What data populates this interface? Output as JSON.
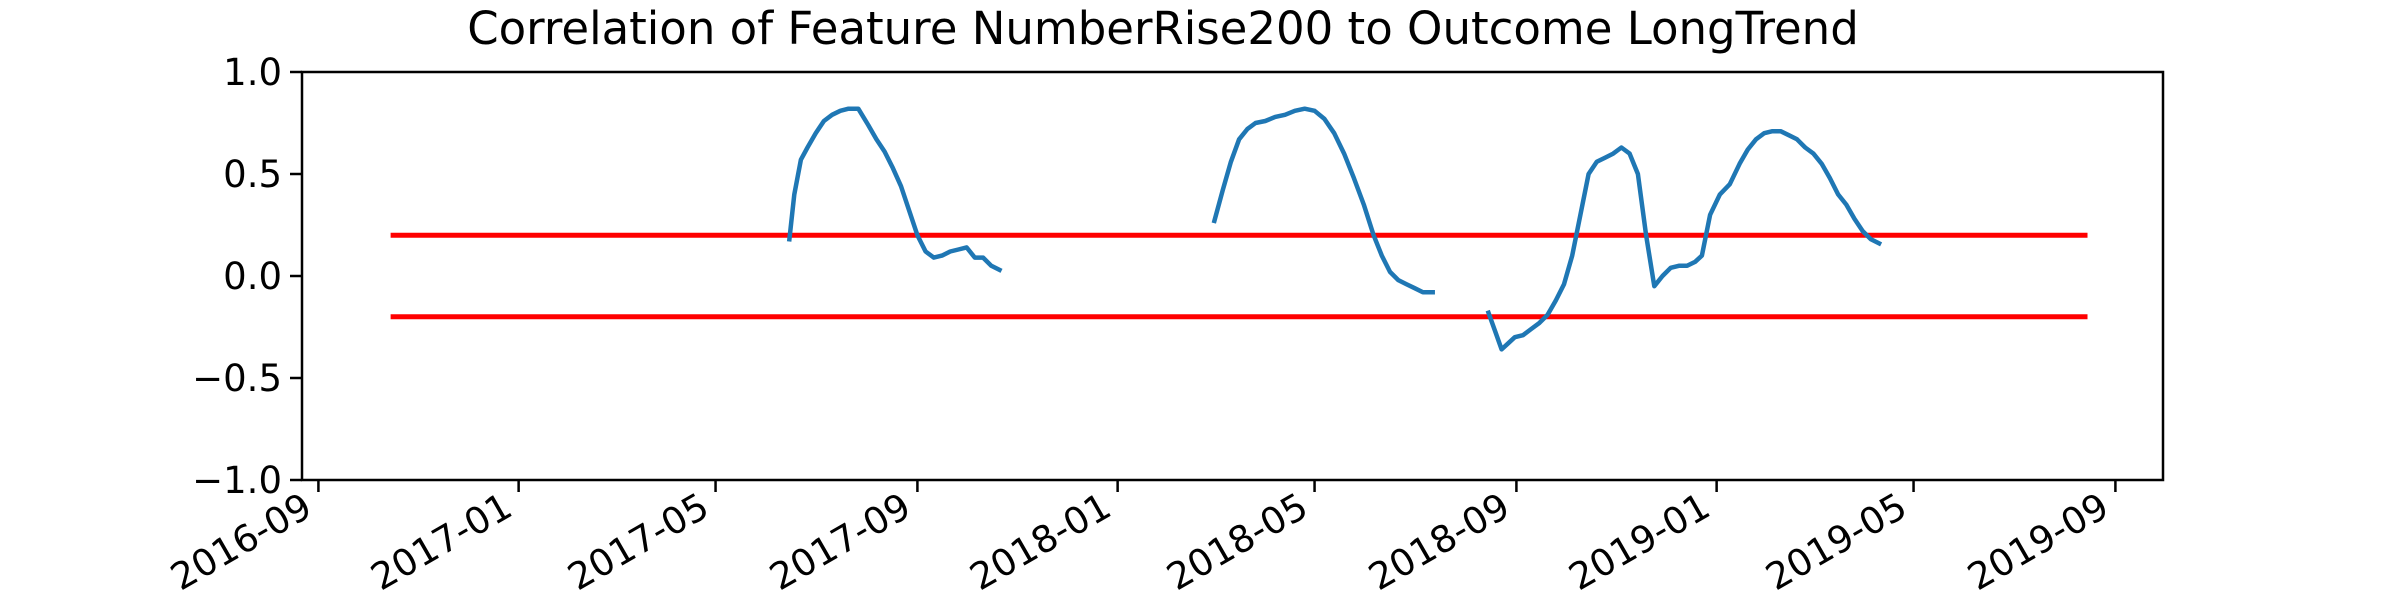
{
  "chart_data": {
    "type": "line",
    "title": "Correlation of Feature NumberRise200 to Outcome LongTrend",
    "xlabel": "",
    "ylabel": "",
    "xlim": [
      "2016-08-22",
      "2019-09-30"
    ],
    "ylim": [
      -1.0,
      1.0
    ],
    "grid": false,
    "legend": "none",
    "y_ticks": [
      "1.0",
      "0.5",
      "0.0",
      "−0.5",
      "−1.0"
    ],
    "y_tick_values": [
      1.0,
      0.5,
      0.0,
      -0.5,
      -1.0
    ],
    "x_ticks": [
      "2016-09",
      "2017-01",
      "2017-05",
      "2017-09",
      "2018-01",
      "2018-05",
      "2018-09",
      "2019-01",
      "2019-05",
      "2019-09"
    ],
    "x_tick_dates": [
      "2016-09-01",
      "2017-01-01",
      "2017-05-01",
      "2017-09-01",
      "2018-01-01",
      "2018-05-01",
      "2018-09-01",
      "2019-01-01",
      "2019-05-01",
      "2019-09-01"
    ],
    "colors": {
      "series": "#1f77b4",
      "threshold": "#ff0000"
    },
    "thresholds": [
      {
        "y": 0.2,
        "x": [
          "2016-10-15",
          "2019-08-15"
        ]
      },
      {
        "y": -0.2,
        "x": [
          "2016-10-15",
          "2019-08-15"
        ]
      }
    ],
    "series": [
      {
        "segments": [
          {
            "x": [
              "2017-06-15",
              "2017-06-18",
              "2017-06-22",
              "2017-06-26",
              "2017-07-01",
              "2017-07-06",
              "2017-07-11",
              "2017-07-16",
              "2017-07-21",
              "2017-07-27",
              "2017-08-02",
              "2017-08-07",
              "2017-08-12",
              "2017-08-17",
              "2017-08-22",
              "2017-08-27",
              "2017-09-01",
              "2017-09-06",
              "2017-09-11",
              "2017-09-16",
              "2017-09-21",
              "2017-09-26",
              "2017-10-01",
              "2017-10-06",
              "2017-10-11",
              "2017-10-16",
              "2017-10-21"
            ],
            "y": [
              0.18,
              0.4,
              0.57,
              0.63,
              0.7,
              0.76,
              0.79,
              0.81,
              0.82,
              0.82,
              0.74,
              0.67,
              0.61,
              0.53,
              0.44,
              0.32,
              0.2,
              0.12,
              0.09,
              0.1,
              0.12,
              0.13,
              0.14,
              0.09,
              0.09,
              0.05,
              0.03
            ]
          },
          {
            "x": [
              "2018-03-01",
              "2018-03-06",
              "2018-03-11",
              "2018-03-16",
              "2018-03-21",
              "2018-03-26",
              "2018-04-01",
              "2018-04-07",
              "2018-04-13",
              "2018-04-19",
              "2018-04-25",
              "2018-05-01",
              "2018-05-07",
              "2018-05-13",
              "2018-05-19",
              "2018-05-25",
              "2018-05-31",
              "2018-06-06",
              "2018-06-11",
              "2018-06-16",
              "2018-06-21",
              "2018-06-26",
              "2018-07-01",
              "2018-07-06",
              "2018-07-12"
            ],
            "y": [
              0.27,
              0.42,
              0.56,
              0.67,
              0.72,
              0.75,
              0.76,
              0.78,
              0.79,
              0.81,
              0.82,
              0.81,
              0.77,
              0.7,
              0.6,
              0.48,
              0.35,
              0.2,
              0.1,
              0.02,
              -0.02,
              -0.04,
              -0.06,
              -0.08,
              -0.08
            ]
          },
          {
            "x": [
              "2018-08-15",
              "2018-08-19",
              "2018-08-23",
              "2018-08-27",
              "2018-08-31",
              "2018-09-05",
              "2018-09-10",
              "2018-09-15",
              "2018-09-20",
              "2018-09-25",
              "2018-09-30",
              "2018-10-05",
              "2018-10-10",
              "2018-10-15",
              "2018-10-20",
              "2018-10-25",
              "2018-10-30",
              "2018-11-04",
              "2018-11-09",
              "2018-11-14",
              "2018-11-19",
              "2018-11-24",
              "2018-11-29",
              "2018-12-04",
              "2018-12-09",
              "2018-12-14",
              "2018-12-19",
              "2018-12-23",
              "2018-12-28",
              "2019-01-03",
              "2019-01-09",
              "2019-01-15",
              "2019-01-20",
              "2019-01-25",
              "2019-01-30",
              "2019-02-04",
              "2019-02-09",
              "2019-02-14",
              "2019-02-19",
              "2019-02-24",
              "2019-03-01",
              "2019-03-06",
              "2019-03-11",
              "2019-03-16",
              "2019-03-21",
              "2019-03-26",
              "2019-03-31",
              "2019-04-05",
              "2019-04-10"
            ],
            "y": [
              -0.18,
              -0.27,
              -0.36,
              -0.33,
              -0.3,
              -0.29,
              -0.26,
              -0.23,
              -0.19,
              -0.12,
              -0.04,
              0.1,
              0.3,
              0.5,
              0.56,
              0.58,
              0.6,
              0.63,
              0.6,
              0.5,
              0.2,
              -0.05,
              0.0,
              0.04,
              0.05,
              0.05,
              0.07,
              0.1,
              0.3,
              0.4,
              0.45,
              0.55,
              0.62,
              0.67,
              0.7,
              0.71,
              0.71,
              0.69,
              0.67,
              0.63,
              0.6,
              0.55,
              0.48,
              0.4,
              0.35,
              0.28,
              0.22,
              0.18,
              0.16
            ]
          }
        ]
      }
    ]
  }
}
